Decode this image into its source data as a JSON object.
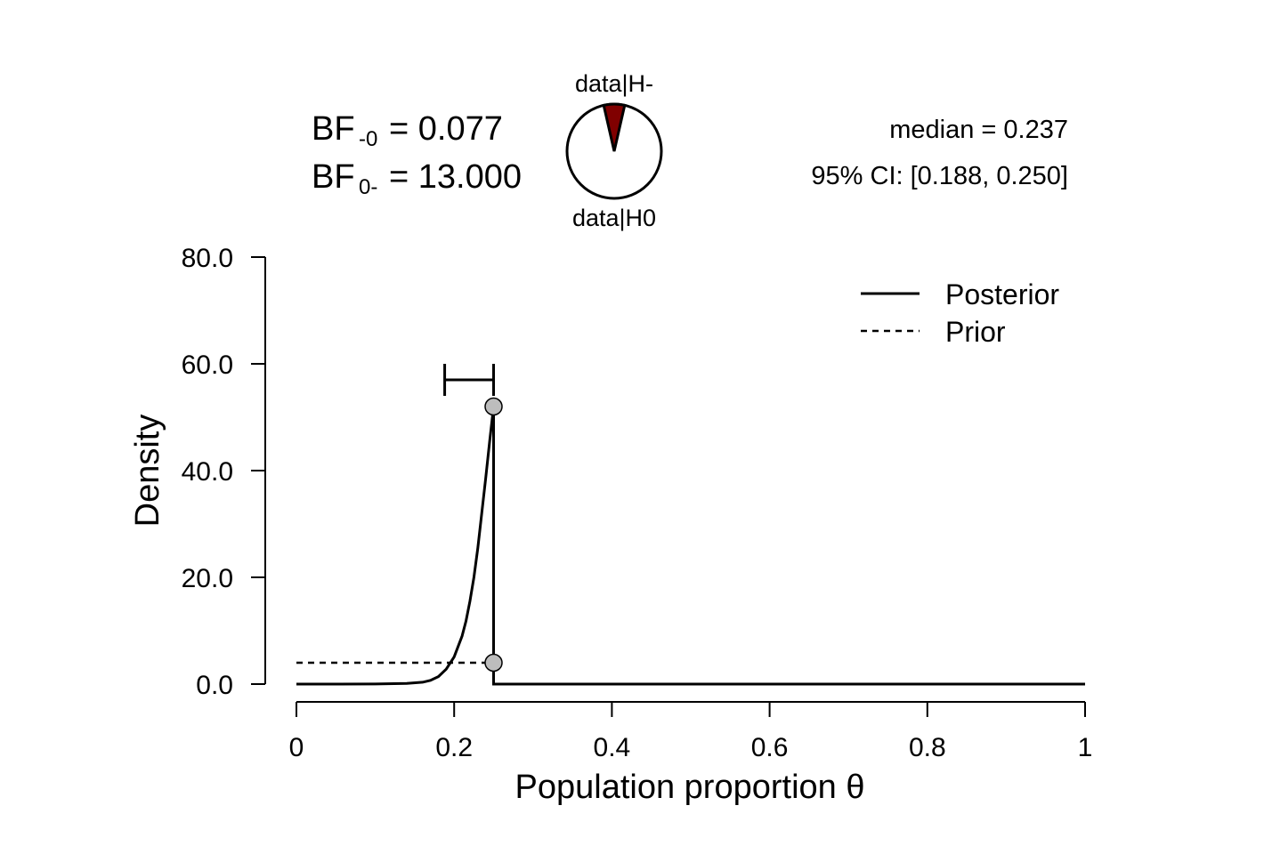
{
  "bayes_factors": {
    "bf_minus0_main": "BF",
    "bf_minus0_sub": "-0",
    "bf_minus0_value": "= 0.077",
    "bf0minus_main": "BF",
    "bf0minus_sub": "0-",
    "bf0minus_value": "= 13.000"
  },
  "pie": {
    "top_label": "data|H-",
    "bottom_label": "data|H0",
    "proportion_H_minus": 0.0714,
    "color_H_minus": "#800000",
    "color_H0": "#ffffff"
  },
  "summary": {
    "median": "median = 0.237",
    "ci": "95% CI: [0.188, 0.250]"
  },
  "chart_data": {
    "type": "line",
    "xlabel": "Population proportion θ",
    "ylabel": "Density",
    "xlim": [
      0,
      1
    ],
    "ylim": [
      0,
      80
    ],
    "x_ticks": [
      "0",
      "0.2",
      "0.4",
      "0.6",
      "0.8",
      "1"
    ],
    "y_ticks": [
      "0.0",
      "20.0",
      "40.0",
      "60.0",
      "80.0"
    ],
    "legend": {
      "placement": "top-right",
      "entries": [
        "Posterior",
        "Prior"
      ]
    },
    "series": [
      {
        "name": "Posterior",
        "style": "solid",
        "x": [
          0,
          0.1,
          0.14,
          0.16,
          0.17,
          0.18,
          0.19,
          0.2,
          0.21,
          0.215,
          0.22,
          0.225,
          0.23,
          0.235,
          0.24,
          0.245,
          0.25,
          0.25,
          0.3,
          0.5,
          0.75,
          1
        ],
        "y": [
          0,
          0.02,
          0.12,
          0.35,
          0.7,
          1.4,
          2.8,
          5.1,
          9.0,
          11.8,
          15.5,
          20.0,
          25.5,
          32.0,
          38.5,
          45.5,
          52.0,
          0,
          0,
          0,
          0,
          0
        ]
      },
      {
        "name": "Prior",
        "style": "dashed",
        "x": [
          0,
          0.25,
          0.25,
          1
        ],
        "y": [
          4,
          4,
          0,
          0
        ]
      }
    ],
    "points": [
      {
        "x": 0.25,
        "y": 52.0,
        "label": "posterior density at 0.25"
      },
      {
        "x": 0.25,
        "y": 4.0,
        "label": "prior density at 0.25"
      }
    ],
    "credible_interval": {
      "lower": 0.188,
      "upper": 0.25,
      "y": 57
    }
  }
}
